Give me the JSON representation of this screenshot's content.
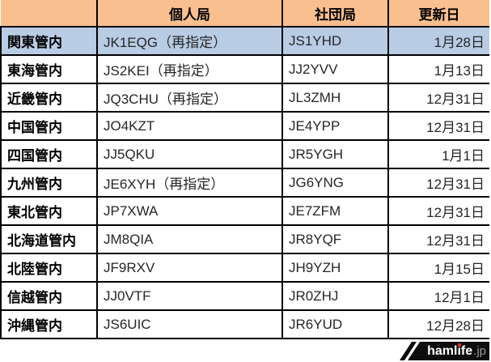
{
  "table": {
    "headers": [
      "",
      "個人局",
      "社団局",
      "更新日"
    ],
    "rows": [
      {
        "region": "関東管内",
        "individual": "JK1EQG（再指定）",
        "club": "JS1YHD",
        "updated": "1月28日",
        "highlighted": true
      },
      {
        "region": "東海管内",
        "individual": "JS2KEI（再指定）",
        "club": "JJ2YVV",
        "updated": "1月13日",
        "highlighted": false
      },
      {
        "region": "近畿管内",
        "individual": "JQ3CHU（再指定）",
        "club": "JL3ZMH",
        "updated": "12月31日",
        "highlighted": false
      },
      {
        "region": "中国管内",
        "individual": "JO4KZT",
        "club": "JE4YPP",
        "updated": "12月31日",
        "highlighted": false
      },
      {
        "region": "四国管内",
        "individual": "JJ5QKU",
        "club": "JR5YGH",
        "updated": "1月1日",
        "highlighted": false
      },
      {
        "region": "九州管内",
        "individual": "JE6XYH（再指定）",
        "club": "JG6YNG",
        "updated": "12月31日",
        "highlighted": false
      },
      {
        "region": "東北管内",
        "individual": "JP7XWA",
        "club": "JE7ZFM",
        "updated": "12月31日",
        "highlighted": false
      },
      {
        "region": "北海道管内",
        "individual": "JM8QIA",
        "club": "JR8YQF",
        "updated": "12月31日",
        "highlighted": false
      },
      {
        "region": "北陸管内",
        "individual": "JF9RXV",
        "club": "JH9YZH",
        "updated": "1月15日",
        "highlighted": false
      },
      {
        "region": "信越管内",
        "individual": "JJ0VTF",
        "club": "JR0ZHJ",
        "updated": "12月1日",
        "highlighted": false
      },
      {
        "region": "沖縄管内",
        "individual": "JS6UIC",
        "club": "JR6YUD",
        "updated": "12月28日",
        "highlighted": false
      }
    ]
  },
  "colors": {
    "header_bg": "#FABF8F",
    "highlight_bg": "#B8CCE4",
    "border": "#000000",
    "logo_bg": "#0d0d0d",
    "logo_dot_red": "#e8380d"
  },
  "logo": {
    "brand_pre": "haml",
    "brand_i": "i",
    "brand_post": "fe",
    "domain": ".jp"
  }
}
